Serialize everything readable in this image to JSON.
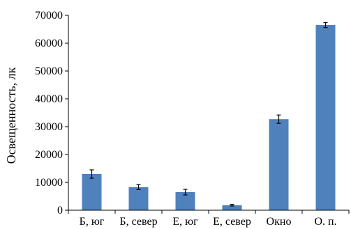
{
  "chart_data": {
    "type": "bar",
    "categories": [
      "Б, юг",
      "Б, север",
      "Е, юг",
      "Е, север",
      "Окно",
      "О. п."
    ],
    "values": [
      13000,
      8300,
      6500,
      1800,
      32700,
      66500
    ],
    "errors": [
      1500,
      900,
      1000,
      300,
      1500,
      900
    ],
    "ylabel": "Освещенность, лк",
    "ylim": [
      0,
      70000
    ],
    "yticks": [
      0,
      10000,
      20000,
      30000,
      40000,
      50000,
      60000,
      70000
    ],
    "grid": false,
    "bar_color": "#4F81BD"
  }
}
